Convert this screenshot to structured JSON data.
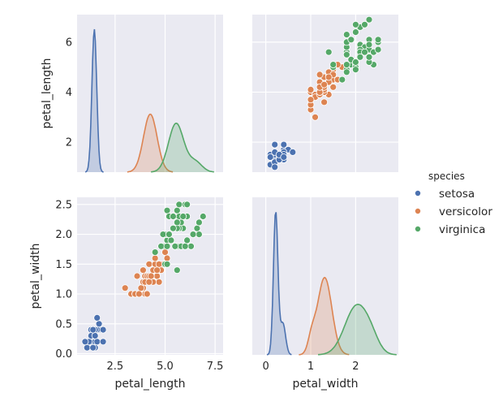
{
  "chart_data": {
    "type": "scatter",
    "title": "",
    "colors": {
      "setosa": "#4c72b0",
      "versicolor": "#dd8452",
      "virginica": "#55a868",
      "panel_bg": "#eaeaf2",
      "grid": "#ffffff"
    },
    "legend": {
      "title": "species",
      "placement": "right",
      "entries": [
        "setosa",
        "versicolor",
        "virginica"
      ]
    },
    "variables": [
      "petal_length",
      "petal_width"
    ],
    "axis_labels": {
      "row0_y": "petal_length",
      "row1_y": "petal_width",
      "col0_x": "petal_length",
      "col1_x": "petal_width"
    },
    "axes": {
      "petal_length_as_x": {
        "range": [
          0.6,
          7.9
        ],
        "ticks": [
          2.5,
          5.0,
          7.5
        ],
        "tick_labels": [
          "2.5",
          "5.0",
          "7.5"
        ]
      },
      "petal_width_as_x": {
        "range": [
          -0.3,
          2.95
        ],
        "ticks": [
          0,
          1,
          2
        ],
        "tick_labels": [
          "0",
          "1",
          "2"
        ]
      },
      "petal_length_as_y": {
        "range": [
          0.8,
          7.1
        ],
        "ticks": [
          2,
          4,
          6
        ],
        "tick_labels": [
          "2",
          "4",
          "6"
        ]
      },
      "petal_width_as_y": {
        "range": [
          -0.02,
          2.62
        ],
        "ticks": [
          0.0,
          0.5,
          1.0,
          1.5,
          2.0,
          2.5
        ],
        "tick_labels": [
          "0.0",
          "0.5",
          "1.0",
          "1.5",
          "2.0",
          "2.5"
        ]
      }
    },
    "points": {
      "setosa": [
        [
          1.4,
          0.2
        ],
        [
          1.3,
          0.2
        ],
        [
          1.5,
          0.2
        ],
        [
          1.7,
          0.4
        ],
        [
          1.4,
          0.3
        ],
        [
          1.5,
          0.1
        ],
        [
          1.6,
          0.2
        ],
        [
          1.1,
          0.1
        ],
        [
          1.2,
          0.2
        ],
        [
          1.3,
          0.4
        ],
        [
          1.0,
          0.2
        ],
        [
          1.7,
          0.5
        ],
        [
          1.9,
          0.2
        ],
        [
          1.6,
          0.4
        ],
        [
          1.5,
          0.4
        ],
        [
          1.4,
          0.1
        ],
        [
          1.6,
          0.6
        ],
        [
          1.9,
          0.4
        ],
        [
          1.3,
          0.3
        ],
        [
          1.5,
          0.3
        ],
        [
          1.4,
          0.4
        ]
      ],
      "versicolor": [
        [
          4.7,
          1.4
        ],
        [
          4.5,
          1.5
        ],
        [
          4.9,
          1.5
        ],
        [
          4.0,
          1.3
        ],
        [
          4.6,
          1.5
        ],
        [
          3.3,
          1.0
        ],
        [
          4.6,
          1.3
        ],
        [
          3.9,
          1.4
        ],
        [
          3.5,
          1.0
        ],
        [
          4.2,
          1.5
        ],
        [
          4.0,
          1.0
        ],
        [
          4.7,
          1.4
        ],
        [
          3.6,
          1.3
        ],
        [
          4.4,
          1.4
        ],
        [
          4.5,
          1.5
        ],
        [
          4.1,
          1.0
        ],
        [
          4.5,
          1.5
        ],
        [
          3.9,
          1.1
        ],
        [
          4.8,
          1.8
        ],
        [
          4.0,
          1.3
        ],
        [
          4.9,
          1.5
        ],
        [
          4.7,
          1.2
        ],
        [
          4.3,
          1.3
        ],
        [
          4.4,
          1.4
        ],
        [
          4.8,
          1.4
        ],
        [
          5.0,
          1.7
        ],
        [
          3.5,
          1.0
        ],
        [
          3.8,
          1.1
        ],
        [
          3.7,
          1.0
        ],
        [
          3.9,
          1.2
        ],
        [
          5.1,
          1.6
        ],
        [
          4.5,
          1.6
        ],
        [
          4.7,
          1.5
        ],
        [
          4.1,
          1.3
        ],
        [
          4.0,
          1.2
        ],
        [
          4.4,
          1.2
        ],
        [
          4.6,
          1.4
        ],
        [
          4.0,
          1.2
        ],
        [
          3.0,
          1.1
        ],
        [
          4.2,
          1.3
        ],
        [
          4.2,
          1.2
        ],
        [
          4.3,
          1.3
        ]
      ],
      "virginica": [
        [
          6.0,
          2.5
        ],
        [
          5.1,
          1.9
        ],
        [
          5.9,
          2.1
        ],
        [
          5.6,
          1.8
        ],
        [
          5.8,
          2.2
        ],
        [
          6.6,
          2.1
        ],
        [
          4.5,
          1.7
        ],
        [
          6.3,
          1.8
        ],
        [
          5.8,
          1.8
        ],
        [
          6.1,
          2.5
        ],
        [
          5.1,
          2.0
        ],
        [
          5.3,
          1.9
        ],
        [
          5.5,
          2.1
        ],
        [
          5.0,
          2.0
        ],
        [
          5.1,
          2.4
        ],
        [
          5.5,
          1.8
        ],
        [
          6.7,
          2.2
        ],
        [
          6.9,
          2.3
        ],
        [
          5.0,
          1.5
        ],
        [
          5.7,
          2.3
        ],
        [
          4.9,
          2.0
        ],
        [
          6.7,
          2.0
        ],
        [
          4.9,
          1.8
        ],
        [
          5.7,
          2.1
        ],
        [
          6.0,
          1.8
        ],
        [
          4.8,
          1.8
        ],
        [
          5.6,
          2.1
        ],
        [
          6.1,
          1.9
        ],
        [
          6.4,
          2.0
        ],
        [
          5.6,
          2.2
        ],
        [
          5.1,
          1.5
        ],
        [
          5.6,
          1.4
        ],
        [
          6.1,
          2.3
        ],
        [
          5.6,
          2.4
        ],
        [
          5.5,
          1.8
        ],
        [
          5.4,
          2.1
        ],
        [
          5.2,
          2.3
        ],
        [
          5.9,
          2.3
        ],
        [
          5.7,
          2.5
        ],
        [
          5.2,
          2.0
        ],
        [
          5.4,
          2.3
        ],
        [
          5.1,
          1.8
        ]
      ]
    },
    "diag_kde": {
      "petal_length": {
        "ymax": 7.6,
        "curves": {
          "setosa": {
            "mu": 1.462,
            "sd": 0.12,
            "peak": 6.9
          },
          "versicolor": {
            "mu": 4.26,
            "sd": 0.34,
            "peak": 2.8
          },
          "virginica_main": {
            "mu": 5.55,
            "sd": 0.38,
            "peak": 2.35
          },
          "virginica_tail": {
            "mu": 6.5,
            "sd": 0.34,
            "peak": 0.5
          }
        }
      },
      "petal_width": {
        "ymax": 5.5,
        "curves": {
          "setosa_main": {
            "mu": 0.22,
            "sd": 0.05,
            "peak": 5.0
          },
          "setosa_tail": {
            "mu": 0.38,
            "sd": 0.06,
            "peak": 1.1
          },
          "versicolor": {
            "mu": 1.31,
            "sd": 0.16,
            "peak": 2.7
          },
          "versicolor_shoulder": {
            "mu": 1.02,
            "sd": 0.08,
            "peak": 0.5
          },
          "virginica": {
            "mu": 2.02,
            "sd": 0.26,
            "peak": 1.7
          },
          "virginica_b": {
            "mu": 2.35,
            "sd": 0.17,
            "peak": 0.35
          }
        }
      }
    }
  }
}
